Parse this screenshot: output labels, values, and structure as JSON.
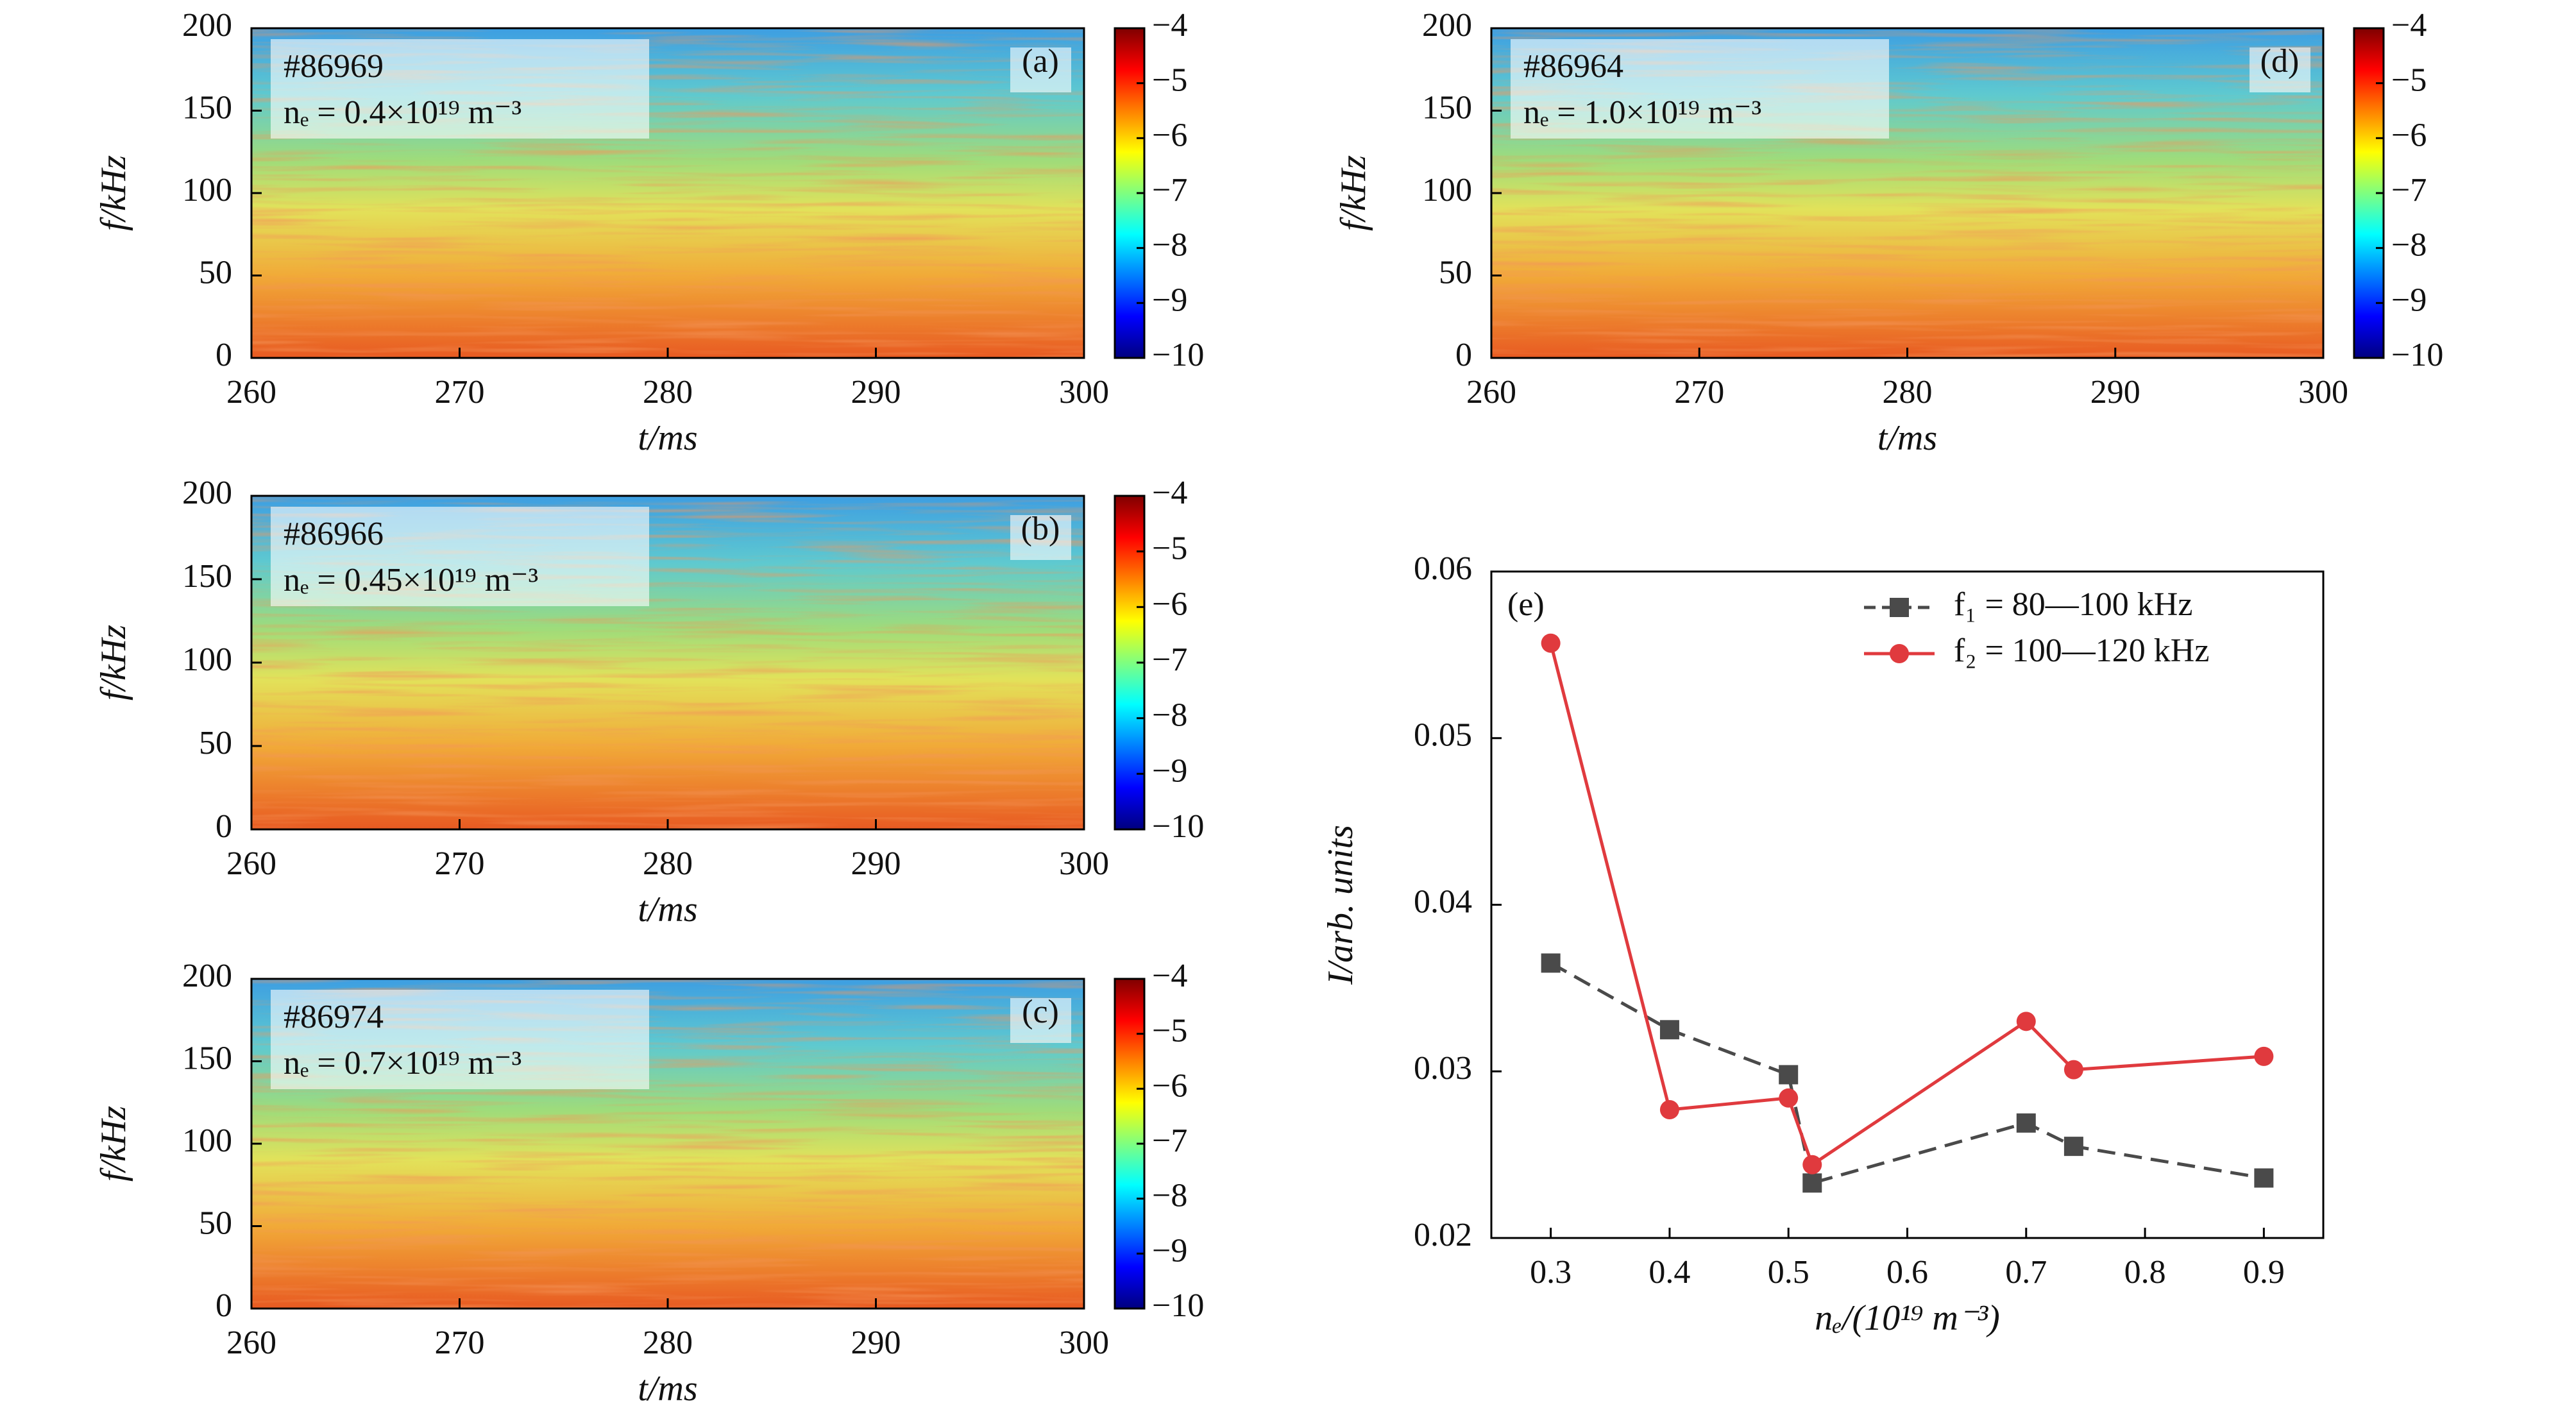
{
  "chart_data": [
    {
      "type": "spectrogram",
      "panel_label": "(a)",
      "annotations": [
        "#86969",
        "nₑ = 0.4×10¹⁹ m⁻³"
      ],
      "xlabel": "t/ms",
      "ylabel": "f/kHz",
      "xlim": [
        260,
        300
      ],
      "xticks": [
        260,
        270,
        280,
        290,
        300
      ],
      "ylim": [
        0,
        200
      ],
      "yticks": [
        0,
        50,
        100,
        150,
        200
      ],
      "colormap": "jet",
      "clim": [
        -10,
        -4
      ],
      "cticks": [
        {
          "value": -4,
          "label": "−4"
        },
        {
          "value": -5,
          "label": "−5"
        },
        {
          "value": -6,
          "label": "−6"
        },
        {
          "value": -7,
          "label": "−7"
        },
        {
          "value": -8,
          "label": "−8"
        },
        {
          "value": -9,
          "label": "−9"
        },
        {
          "value": -10,
          "label": "−10"
        }
      ]
    },
    {
      "type": "spectrogram",
      "panel_label": "(b)",
      "annotations": [
        "#86966",
        "nₑ = 0.45×10¹⁹ m⁻³"
      ],
      "xlabel": "t/ms",
      "ylabel": "f/kHz",
      "xlim": [
        260,
        300
      ],
      "xticks": [
        260,
        270,
        280,
        290,
        300
      ],
      "ylim": [
        0,
        200
      ],
      "yticks": [
        0,
        50,
        100,
        150,
        200
      ],
      "colormap": "jet",
      "clim": [
        -10,
        -4
      ],
      "cticks": [
        {
          "value": -4,
          "label": "−4"
        },
        {
          "value": -5,
          "label": "−5"
        },
        {
          "value": -6,
          "label": "−6"
        },
        {
          "value": -7,
          "label": "−7"
        },
        {
          "value": -8,
          "label": "−8"
        },
        {
          "value": -9,
          "label": "−9"
        },
        {
          "value": -10,
          "label": "−10"
        }
      ]
    },
    {
      "type": "spectrogram",
      "panel_label": "(c)",
      "annotations": [
        "#86974",
        "nₑ = 0.7×10¹⁹ m⁻³"
      ],
      "xlabel": "t/ms",
      "ylabel": "f/kHz",
      "xlim": [
        260,
        300
      ],
      "xticks": [
        260,
        270,
        280,
        290,
        300
      ],
      "ylim": [
        0,
        200
      ],
      "yticks": [
        0,
        50,
        100,
        150,
        200
      ],
      "colormap": "jet",
      "clim": [
        -10,
        -4
      ],
      "cticks": [
        {
          "value": -4,
          "label": "−4"
        },
        {
          "value": -5,
          "label": "−5"
        },
        {
          "value": -6,
          "label": "−6"
        },
        {
          "value": -7,
          "label": "−7"
        },
        {
          "value": -8,
          "label": "−8"
        },
        {
          "value": -9,
          "label": "−9"
        },
        {
          "value": -10,
          "label": "−10"
        }
      ]
    },
    {
      "type": "spectrogram",
      "panel_label": "(d)",
      "annotations": [
        "#86964",
        "nₑ = 1.0×10¹⁹ m⁻³"
      ],
      "xlabel": "t/ms",
      "ylabel": "f/kHz",
      "xlim": [
        260,
        300
      ],
      "xticks": [
        260,
        270,
        280,
        290,
        300
      ],
      "ylim": [
        0,
        200
      ],
      "yticks": [
        0,
        50,
        100,
        150,
        200
      ],
      "colormap": "jet",
      "clim": [
        -10,
        -4
      ],
      "cticks": [
        {
          "value": -4,
          "label": "−4"
        },
        {
          "value": -5,
          "label": "−5"
        },
        {
          "value": -6,
          "label": "−6"
        },
        {
          "value": -7,
          "label": "−7"
        },
        {
          "value": -8,
          "label": "−8"
        },
        {
          "value": -9,
          "label": "−9"
        },
        {
          "value": -10,
          "label": "−10"
        }
      ]
    },
    {
      "type": "line",
      "panel_label": "(e)",
      "xlabel": "nₑ/(10¹⁹ m⁻³)",
      "ylabel": "I/arb. units",
      "x": [
        0.3,
        0.4,
        0.5,
        0.52,
        0.7,
        0.74,
        0.9
      ],
      "xlim": [
        0.25,
        0.95
      ],
      "xticks": [
        0.3,
        0.4,
        0.5,
        0.6,
        0.7,
        0.8,
        0.9
      ],
      "ylim": [
        0.02,
        0.06
      ],
      "yticks": [
        0.02,
        0.03,
        0.04,
        0.05,
        0.06
      ],
      "legend": "upper right",
      "series": [
        {
          "name": "f₁ = 80—100 kHz",
          "color": "#4a4a4a",
          "marker": "square",
          "dash": true,
          "values": [
            0.0365,
            0.0325,
            0.0298,
            0.0233,
            0.0269,
            0.0255,
            0.0236
          ]
        },
        {
          "name": "f₂ = 100—120 kHz",
          "color": "#e03a3e",
          "marker": "circle",
          "dash": false,
          "values": [
            0.0557,
            0.0277,
            0.0284,
            0.0244,
            0.033,
            0.0301,
            0.0309
          ]
        }
      ]
    }
  ]
}
